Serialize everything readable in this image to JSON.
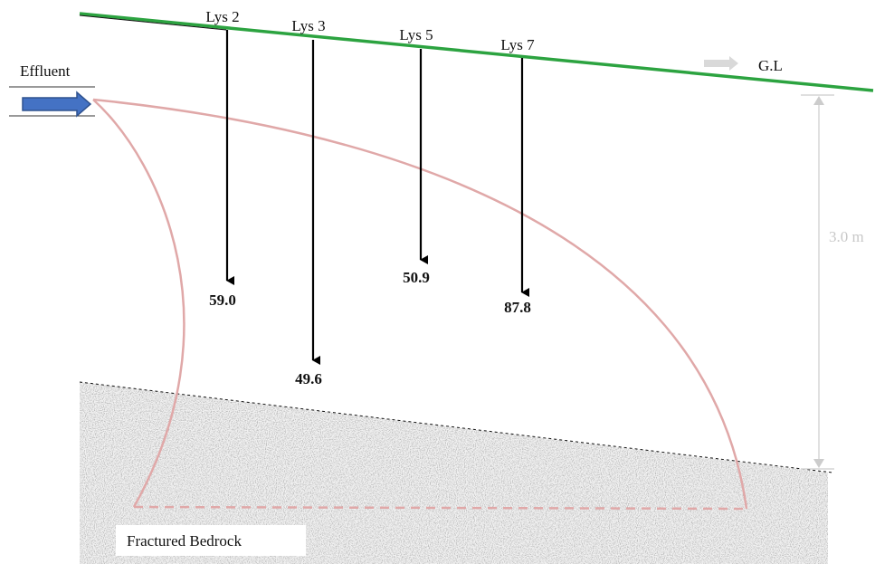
{
  "ground_label": "G.L",
  "effluent_label": "Effluent",
  "depth_label": "3.0 m",
  "bedrock_label": "Fractured Bedrock",
  "lysimeters": [
    {
      "label": "Lys 2",
      "value": "59.0"
    },
    {
      "label": "Lys 3",
      "value": "49.6"
    },
    {
      "label": "Lys 5",
      "value": "50.9"
    },
    {
      "label": "Lys 7",
      "value": "87.8"
    }
  ]
}
